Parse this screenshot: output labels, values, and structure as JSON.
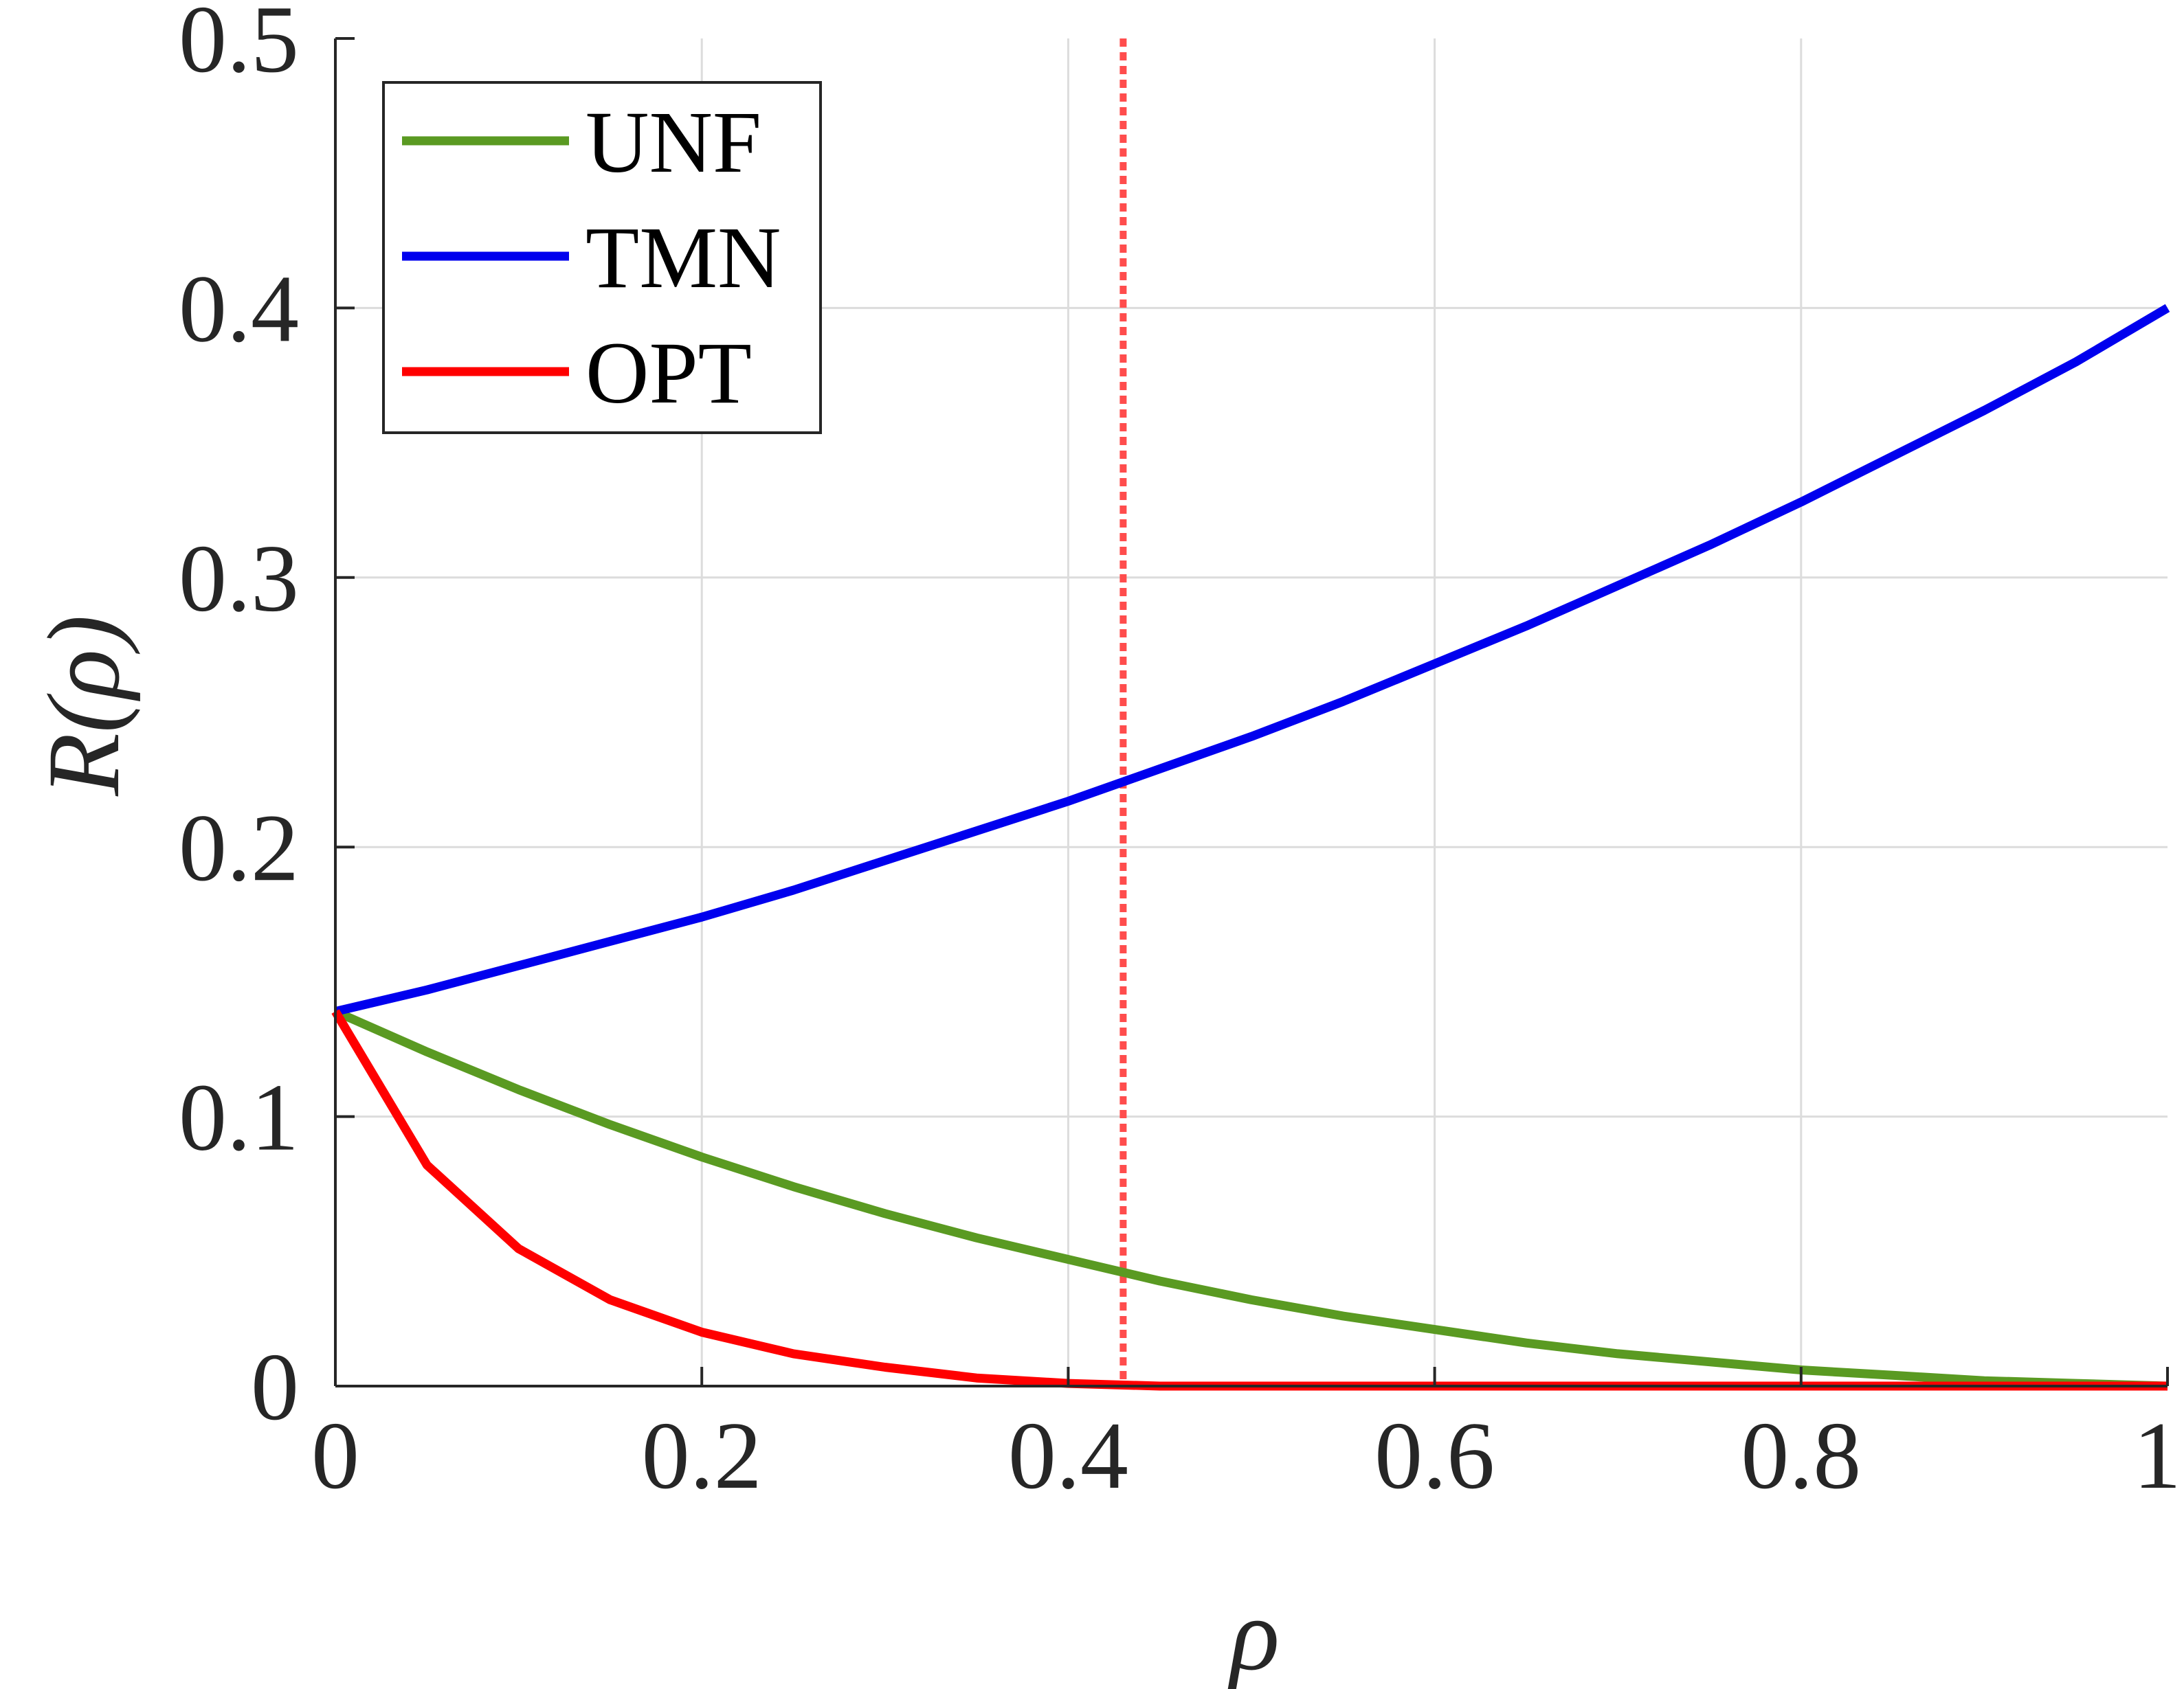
{
  "chart_data": {
    "type": "line",
    "title": "",
    "xlabel": "ρ",
    "ylabel_main": "R",
    "ylabel_paren": "(ρ)",
    "xlim": [
      0,
      1
    ],
    "ylim": [
      0,
      0.5
    ],
    "xticks": [
      0,
      0.2,
      0.4,
      0.6,
      0.8,
      1
    ],
    "xtick_labels": [
      "0",
      "0.2",
      "0.4",
      "0.6",
      "0.8",
      "1"
    ],
    "yticks": [
      0,
      0.1,
      0.2,
      0.3,
      0.4,
      0.5
    ],
    "ytick_labels": [
      "0",
      "0.1",
      "0.2",
      "0.3",
      "0.4",
      "0.5"
    ],
    "grid": true,
    "legend_position": "top-left",
    "vertical_marker": {
      "x": 0.43,
      "color": "#ff4d4d",
      "style": "dotted"
    },
    "x": [
      0,
      0.05,
      0.1,
      0.15,
      0.2,
      0.25,
      0.3,
      0.35,
      0.4,
      0.45,
      0.5,
      0.55,
      0.6,
      0.65,
      0.7,
      0.75,
      0.8,
      0.85,
      0.9,
      0.95,
      1
    ],
    "series": [
      {
        "name": "UNF",
        "color": "#5a9a22",
        "values": [
          0.139,
          0.124,
          0.11,
          0.097,
          0.085,
          0.074,
          0.064,
          0.055,
          0.047,
          0.039,
          0.032,
          0.026,
          0.021,
          0.016,
          0.012,
          0.009,
          0.006,
          0.004,
          0.002,
          0.001,
          0.0
        ]
      },
      {
        "name": "TMN",
        "color": "#0000ee",
        "values": [
          0.139,
          0.147,
          0.156,
          0.165,
          0.174,
          0.184,
          0.195,
          0.206,
          0.217,
          0.229,
          0.241,
          0.254,
          0.268,
          0.282,
          0.297,
          0.312,
          0.328,
          0.345,
          0.362,
          0.38,
          0.4
        ]
      },
      {
        "name": "OPT",
        "color": "#ff0000",
        "values": [
          0.139,
          0.082,
          0.051,
          0.032,
          0.02,
          0.012,
          0.007,
          0.003,
          0.001,
          0.0,
          0.0,
          0.0,
          0.0,
          0.0,
          0.0,
          0.0,
          0.0,
          0.0,
          0.0,
          0.0,
          0.0
        ]
      }
    ]
  }
}
